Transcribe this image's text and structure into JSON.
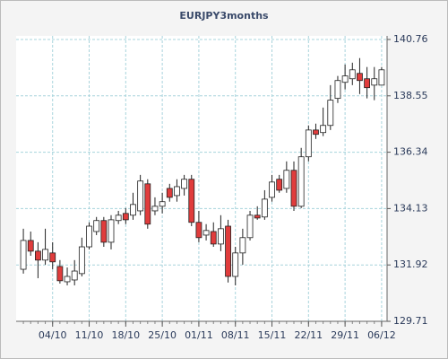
{
  "chart_data": {
    "type": "candlestick",
    "title": "EURJPY3months",
    "categories": [
      null,
      null,
      null,
      null,
      "04/10",
      null,
      null,
      null,
      null,
      "11/10",
      null,
      null,
      null,
      null,
      "18/10",
      null,
      null,
      null,
      null,
      "25/10",
      null,
      null,
      null,
      null,
      "01/11",
      null,
      null,
      null,
      null,
      "08/11",
      null,
      null,
      null,
      null,
      "15/11",
      null,
      null,
      null,
      null,
      "22/11",
      null,
      null,
      null,
      null,
      "29/11",
      null,
      null,
      null,
      null,
      "06/12"
    ],
    "open": [
      131.75,
      132.88,
      132.46,
      132.11,
      132.39,
      131.86,
      131.26,
      131.33,
      131.58,
      132.63,
      133.23,
      133.66,
      132.81,
      133.66,
      133.94,
      133.87,
      134.04,
      135.1,
      134.04,
      134.22,
      134.92,
      134.64,
      134.92,
      135.28,
      133.59,
      133.09,
      133.23,
      132.74,
      133.44,
      131.47,
      132.39,
      132.99,
      133.87,
      133.8,
      134.57,
      135.28,
      134.92,
      135.63,
      134.22,
      136.16,
      137.21,
      137.11,
      137.39,
      138.45,
      139.08,
      139.22,
      139.43,
      139.22,
      138.97,
      138.97
    ],
    "high": [
      133.34,
      133.23,
      132.81,
      133.34,
      132.81,
      132.11,
      131.82,
      132.11,
      132.99,
      133.59,
      133.8,
      133.8,
      133.87,
      134.04,
      134.15,
      134.75,
      135.45,
      135.28,
      134.57,
      134.75,
      135.1,
      135.28,
      135.45,
      135.45,
      134.04,
      133.52,
      133.59,
      133.87,
      133.69,
      132.63,
      133.34,
      134.04,
      134.22,
      134.85,
      135.45,
      135.45,
      135.98,
      135.98,
      136.51,
      137.39,
      137.46,
      138.09,
      138.97,
      139.33,
      139.78,
      139.85,
      140.03,
      139.68,
      139.68,
      139.68
    ],
    "low": [
      131.58,
      132.28,
      131.4,
      131.93,
      131.75,
      131.19,
      131.12,
      131.12,
      131.47,
      132.53,
      133.09,
      132.63,
      132.53,
      133.52,
      133.52,
      133.69,
      133.87,
      133.34,
      133.87,
      133.94,
      134.4,
      134.4,
      134.64,
      133.44,
      132.81,
      132.88,
      132.63,
      132.46,
      131.23,
      131.12,
      131.93,
      132.88,
      133.69,
      133.69,
      134.4,
      134.75,
      134.75,
      134.04,
      134.15,
      135.98,
      136.86,
      136.97,
      137.21,
      138.27,
      138.8,
      138.97,
      138.62,
      138.45,
      138.38,
      138.97
    ],
    "close": [
      132.88,
      132.46,
      132.11,
      132.53,
      132.04,
      131.3,
      131.47,
      131.68,
      132.63,
      133.44,
      133.66,
      132.81,
      133.69,
      133.87,
      133.69,
      134.29,
      135.21,
      133.52,
      134.22,
      134.4,
      134.57,
      134.99,
      135.28,
      133.59,
      132.99,
      133.27,
      132.74,
      133.34,
      131.47,
      132.39,
      132.99,
      133.87,
      133.76,
      134.5,
      135.17,
      134.85,
      135.63,
      134.22,
      136.16,
      137.21,
      137.04,
      137.39,
      138.38,
      139.15,
      139.33,
      139.57,
      139.15,
      138.87,
      139.22,
      139.57
    ],
    "up_color": "#ffffff",
    "down_color": "#e03c3c",
    "ylim": [
      129.71,
      140.9
    ],
    "yticks": [
      129.71,
      131.92,
      134.13,
      136.34,
      138.55,
      140.76
    ],
    "grid": true
  }
}
